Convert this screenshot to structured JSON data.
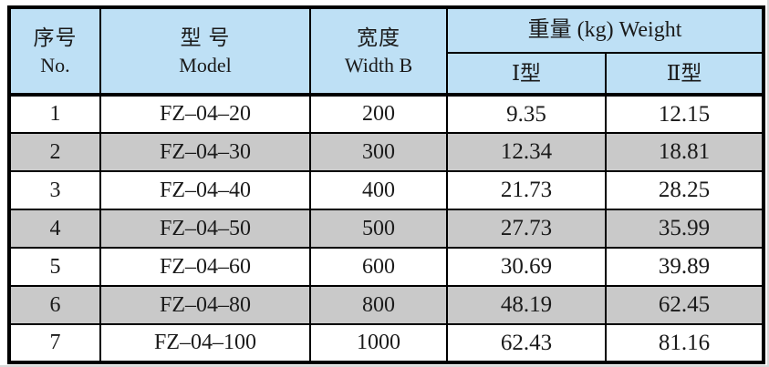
{
  "colors": {
    "header_bg": "#bee0f5",
    "row_bg": "#ffffff",
    "row_alt_bg": "#c9c9c9",
    "border": "#000000"
  },
  "table": {
    "header": {
      "no_zh": "序号",
      "no_en": "No.",
      "model_zh": "型  号",
      "model_en": "Model",
      "width_zh": "宽度",
      "width_en": "Width  B",
      "weight": "重量 (kg) Weight",
      "type1": "Ⅰ型",
      "type2": "Ⅱ型"
    },
    "rows": [
      {
        "no": "1",
        "model": "FZ–04–20",
        "width": "200",
        "weight1": "9.35",
        "weight2": "12.15"
      },
      {
        "no": "2",
        "model": "FZ–04–30",
        "width": "300",
        "weight1": "12.34",
        "weight2": "18.81"
      },
      {
        "no": "3",
        "model": "FZ–04–40",
        "width": "400",
        "weight1": "21.73",
        "weight2": "28.25"
      },
      {
        "no": "4",
        "model": "FZ–04–50",
        "width": "500",
        "weight1": "27.73",
        "weight2": "35.99"
      },
      {
        "no": "5",
        "model": "FZ–04–60",
        "width": "600",
        "weight1": "30.69",
        "weight2": "39.89"
      },
      {
        "no": "6",
        "model": "FZ–04–80",
        "width": "800",
        "weight1": "48.19",
        "weight2": "62.45"
      },
      {
        "no": "7",
        "model": "FZ–04–100",
        "width": "1000",
        "weight1": "62.43",
        "weight2": "81.16"
      }
    ]
  }
}
